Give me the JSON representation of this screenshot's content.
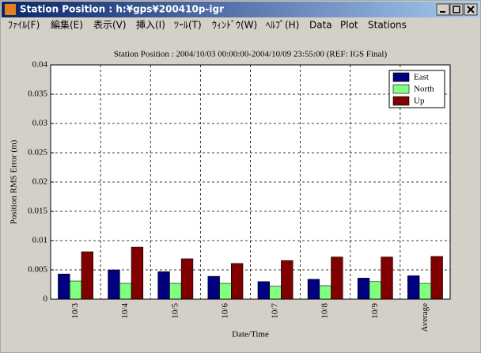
{
  "window": {
    "title": "Station Position : h:¥gps¥200410p-igr",
    "menu": [
      "ﾌｧｲﾙ(F)",
      "編集(E)",
      "表示(V)",
      "挿入(I)",
      "ﾂｰﾙ(T)",
      "ｳｨﾝﾄﾞｳ(W)",
      "ﾍﾙﾌﾟ(H)",
      "Data",
      "Plot",
      "Stations"
    ]
  },
  "chart_data": {
    "type": "bar",
    "title": "Station Position : 2004/10/03 00:00:00-2004/10/09 23:55:00 (REF: IGS Final)",
    "x_label": "Date/Time",
    "y_label": "Position RMS Error (m)",
    "categories": [
      "10/3",
      "10/4",
      "10/5",
      "10/6",
      "10/7",
      "10/8",
      "10/9",
      "Average"
    ],
    "series": [
      {
        "name": "East",
        "color": "#000080",
        "values": [
          0.0043,
          0.005,
          0.0047,
          0.0039,
          0.003,
          0.0034,
          0.0036,
          0.004
        ]
      },
      {
        "name": "North",
        "color": "#80ff80",
        "values": [
          0.0031,
          0.0027,
          0.0027,
          0.0027,
          0.0022,
          0.0023,
          0.003,
          0.0027
        ]
      },
      {
        "name": "Up",
        "color": "#800000",
        "values": [
          0.0081,
          0.0089,
          0.0069,
          0.0061,
          0.0066,
          0.0072,
          0.0072,
          0.0073
        ]
      }
    ],
    "ylim": [
      0,
      0.04
    ],
    "yticks": [
      0,
      0.005,
      0.01,
      0.015,
      0.02,
      0.025,
      0.03,
      0.035,
      0.04
    ],
    "grid": true,
    "legend": "top-right"
  }
}
